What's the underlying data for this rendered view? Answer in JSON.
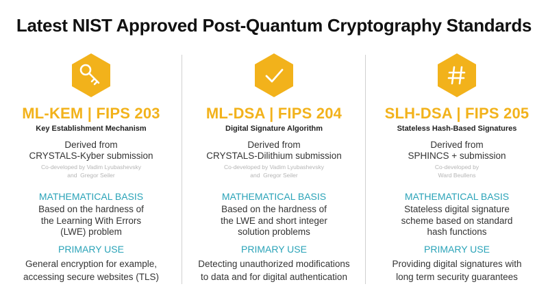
{
  "title": "Latest NIST Approved Post-Quantum Cryptography Standards",
  "colors": {
    "accent_gold": "#f2b21b",
    "accent_teal": "#2aa3b8",
    "divider": "#d0d0d0"
  },
  "standards": [
    {
      "icon": "key-icon",
      "name": "ML-KEM | FIPS 203",
      "full_name": "Key Establishment Mechanism",
      "derived_from": [
        "Derived from",
        "CRYSTALS-Kyber submission"
      ],
      "codeveloped": [
        "Co-developed by Vadim Lyubashevsky",
        "and  Gregor Seiler"
      ],
      "basis_heading": "MATHEMATICAL BASIS",
      "basis": [
        "Based on the hardness of",
        "the Learning With Errors",
        "(LWE) problem"
      ],
      "use_heading": "PRIMARY USE",
      "use": [
        "General encryption for example,",
        "accessing secure websites (TLS)"
      ]
    },
    {
      "icon": "checkmark-icon",
      "name": "ML-DSA | FIPS 204",
      "full_name": "Digital Signature Algorithm",
      "derived_from": [
        "Derived from",
        "CRYSTALS-Dilithium submission"
      ],
      "codeveloped": [
        "Co-developed by Vadim Lyubashevsky",
        "and  Gregor Seiler"
      ],
      "basis_heading": "MATHEMATICAL BASIS",
      "basis": [
        "Based on the hardness of",
        "the LWE and short integer",
        "solution problems"
      ],
      "use_heading": "PRIMARY USE",
      "use": [
        "Detecting unauthorized modifications",
        "to data and for digital authentication"
      ]
    },
    {
      "icon": "hash-icon",
      "name": "SLH-DSA | FIPS 205",
      "full_name": "Stateless Hash-Based Signatures",
      "derived_from": [
        "Derived from",
        "SPHINCS + submission"
      ],
      "codeveloped": [
        "Co-developed by",
        "Ward Beullens"
      ],
      "basis_heading": "MATHEMATICAL BASIS",
      "basis": [
        "Stateless digital signature",
        "scheme based on standard",
        "hash functions"
      ],
      "use_heading": "PRIMARY USE",
      "use": [
        "Providing digital signatures with",
        "long term security guarantees"
      ]
    }
  ]
}
